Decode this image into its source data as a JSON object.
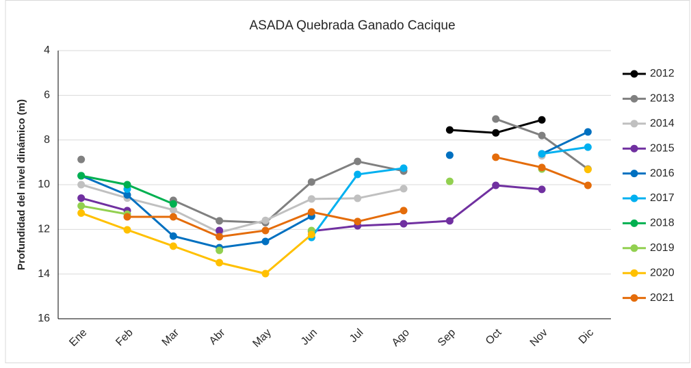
{
  "chart_data": {
    "type": "line",
    "title": "ASADA Quebrada Ganado Cacique",
    "y_label": "Profundidad del nivel dinámico (m)",
    "categories": [
      "Ene",
      "Feb",
      "Mar",
      "Abr",
      "May",
      "Jun",
      "Jul",
      "Ago",
      "Sep",
      "Oct",
      "Nov",
      "Dic"
    ],
    "ylim": [
      4,
      16
    ],
    "yticks": [
      4,
      6,
      8,
      10,
      12,
      14,
      16
    ],
    "y_inverted": true,
    "grid": true,
    "legend": "right",
    "series": [
      {
        "name": "2012",
        "color": "#000000",
        "values": [
          null,
          null,
          null,
          null,
          null,
          null,
          null,
          null,
          7.55,
          7.68,
          7.1,
          null
        ]
      },
      {
        "name": "2013",
        "color": "#808080",
        "values": [
          8.87,
          null,
          10.7,
          11.62,
          11.7,
          9.88,
          8.96,
          9.39,
          null,
          7.06,
          7.8,
          9.3
        ]
      },
      {
        "name": "2014",
        "color": "#c0c0c0",
        "values": [
          10.0,
          10.6,
          11.13,
          12.14,
          11.6,
          10.64,
          10.61,
          10.18,
          null,
          null,
          8.71,
          null
        ]
      },
      {
        "name": "2015",
        "color": "#7030a0",
        "values": [
          10.6,
          11.16,
          null,
          12.05,
          null,
          12.08,
          11.84,
          11.75,
          11.62,
          10.03,
          10.21,
          null
        ]
      },
      {
        "name": "2016",
        "color": "#0070c0",
        "values": [
          9.6,
          10.46,
          12.3,
          12.82,
          12.54,
          11.41,
          null,
          null,
          8.68,
          null,
          8.62,
          7.64
        ]
      },
      {
        "name": "2017",
        "color": "#00b0f0",
        "values": [
          null,
          10.2,
          null,
          null,
          null,
          12.36,
          9.54,
          9.26,
          null,
          null,
          8.62,
          8.32
        ]
      },
      {
        "name": "2018",
        "color": "#00b050",
        "values": [
          9.6,
          10.0,
          10.86,
          null,
          null,
          null,
          null,
          null,
          null,
          null,
          null,
          null
        ]
      },
      {
        "name": "2019",
        "color": "#92d050",
        "values": [
          10.95,
          11.32,
          null,
          12.94,
          null,
          12.05,
          null,
          null,
          9.85,
          null,
          9.3,
          null
        ]
      },
      {
        "name": "2020",
        "color": "#ffc000",
        "values": [
          11.27,
          12.02,
          12.75,
          13.49,
          13.98,
          12.23,
          null,
          null,
          null,
          null,
          null,
          9.32
        ]
      },
      {
        "name": "2021",
        "color": "#e46c0a",
        "values": [
          null,
          11.44,
          11.44,
          12.33,
          12.05,
          11.22,
          11.65,
          11.16,
          null,
          8.77,
          9.23,
          10.03
        ]
      }
    ]
  }
}
